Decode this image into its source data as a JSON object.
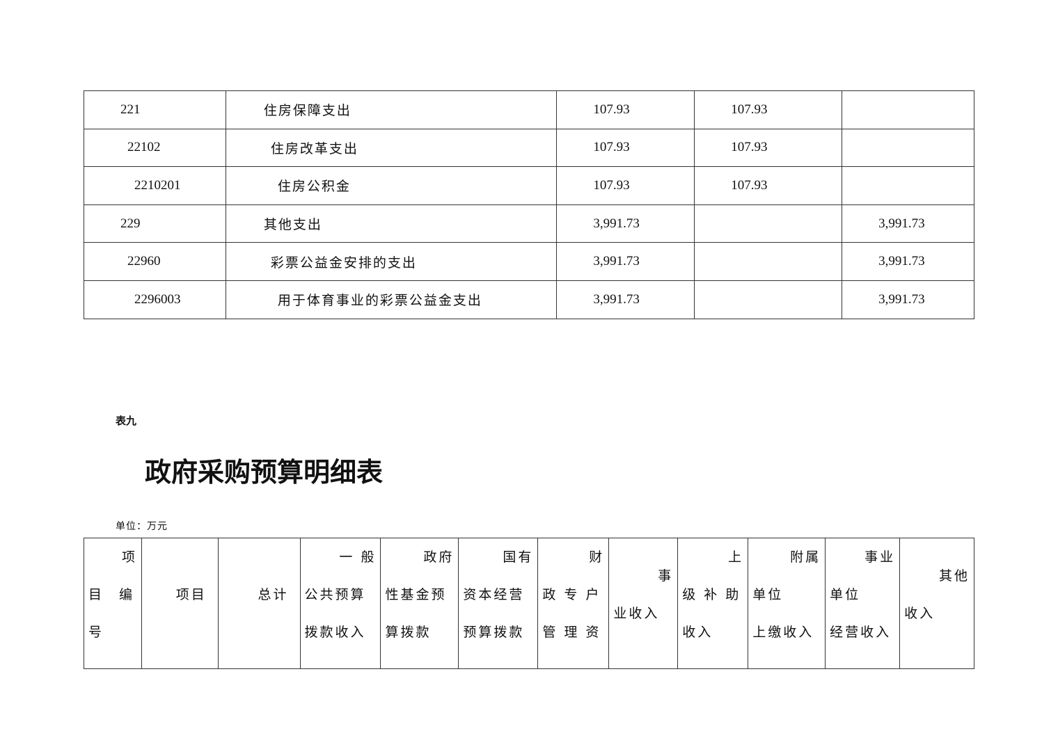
{
  "top_table": {
    "rows": [
      {
        "code": "221",
        "name": "住房保障支出",
        "total": "107.93",
        "col4": "107.93",
        "col5": ""
      },
      {
        "code": "22102",
        "name": "住房改革支出",
        "total": "107.93",
        "col4": "107.93",
        "col5": ""
      },
      {
        "code": "2210201",
        "name": "住房公积金",
        "total": "107.93",
        "col4": "107.93",
        "col5": ""
      },
      {
        "code": "229",
        "name": "其他支出",
        "total": "3,991.73",
        "col4": "",
        "col5": "3,991.73"
      },
      {
        "code": "22960",
        "name": "彩票公益金安排的支出",
        "total": "3,991.73",
        "col4": "",
        "col5": "3,991.73"
      },
      {
        "code": "2296003",
        "name": "用于体育事业的彩票公益金支出",
        "total": "3,991.73",
        "col4": "",
        "col5": "3,991.73"
      }
    ]
  },
  "section": {
    "tag": "表九",
    "title": "政府采购预算明细表",
    "unit": "单位：万元"
  },
  "header_table": {
    "columns": [
      {
        "lines": [
          "项",
          "目　编",
          "号"
        ]
      },
      {
        "lines": [
          "",
          "项目",
          ""
        ]
      },
      {
        "lines": [
          "",
          "总计",
          ""
        ]
      },
      {
        "lines": [
          "一 般",
          "公共预算",
          "拨款收入"
        ]
      },
      {
        "lines": [
          "政府",
          "性基金预",
          "算拨款"
        ]
      },
      {
        "lines": [
          "国有",
          "资本经营",
          "预算拨款"
        ]
      },
      {
        "lines": [
          "财",
          "政 专 户",
          "管 理 资"
        ]
      },
      {
        "lines": [
          "事",
          "业收入"
        ]
      },
      {
        "lines": [
          "上",
          "级 补 助",
          "收入"
        ]
      },
      {
        "lines": [
          "附属",
          "单位",
          "上缴收入"
        ]
      },
      {
        "lines": [
          "事业",
          "单位",
          "经营收入"
        ]
      },
      {
        "lines": [
          "其他",
          "收入"
        ]
      }
    ]
  }
}
